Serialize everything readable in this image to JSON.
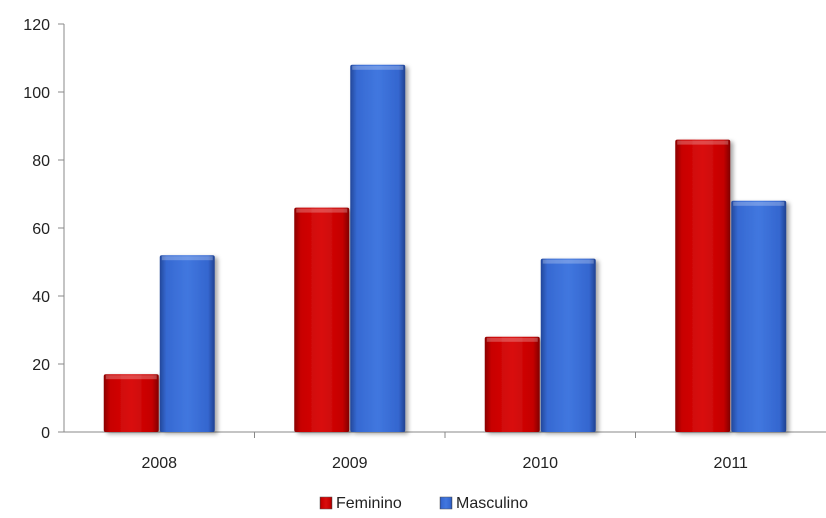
{
  "chart_data": {
    "type": "bar",
    "categories": [
      "2008",
      "2009",
      "2010",
      "2011"
    ],
    "series": [
      {
        "name": "Feminino",
        "values": [
          17,
          66,
          28,
          86
        ],
        "color": "#c00000"
      },
      {
        "name": "Masculino",
        "values": [
          52,
          108,
          51,
          68
        ],
        "color": "#3366cc"
      }
    ],
    "ylim": [
      0,
      120
    ],
    "yticks": [
      0,
      20,
      40,
      60,
      80,
      100,
      120
    ],
    "ytick_labels": [
      "0",
      "20",
      "40",
      "60",
      "80",
      "100",
      "120"
    ],
    "legend": "bottom",
    "grid": false
  }
}
